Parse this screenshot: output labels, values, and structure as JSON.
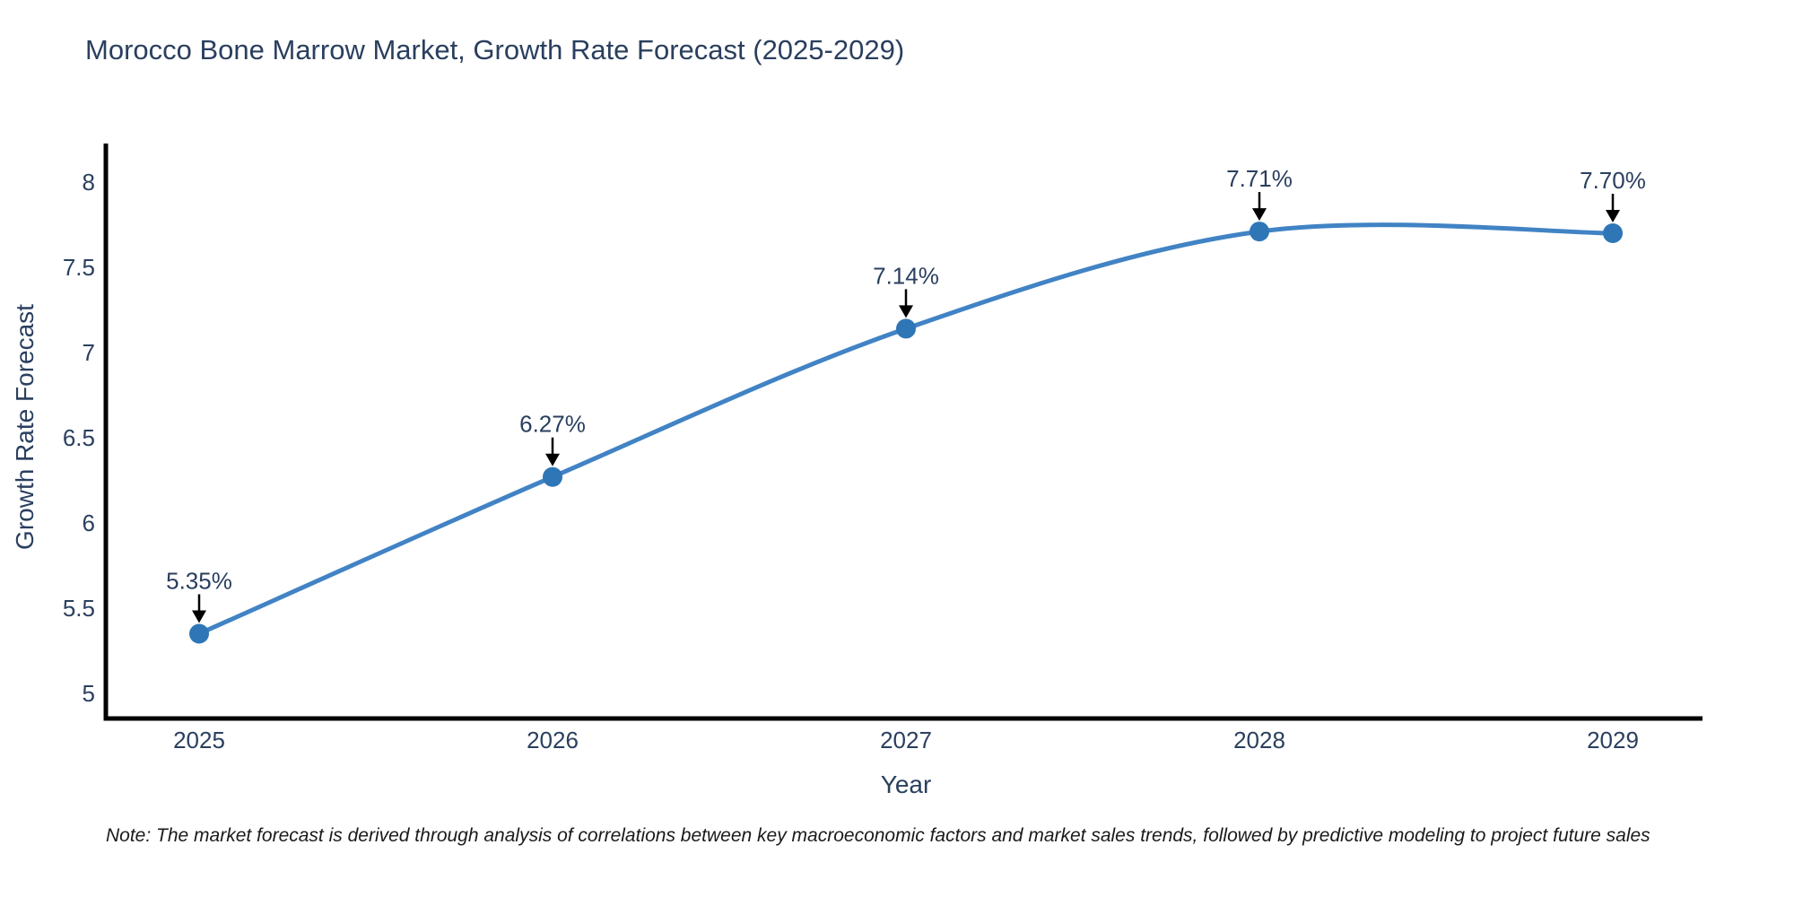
{
  "note": "Note: The market forecast is derived through analysis of correlations between key macroeconomic factors and market sales trends, followed by predictive modeling to project future sales",
  "chart_data": {
    "type": "line",
    "title": "Morocco Bone Marrow Market, Growth Rate Forecast (2025-2029)",
    "xlabel": "Year",
    "ylabel": "Growth Rate Forecast",
    "x": [
      2025,
      2026,
      2027,
      2028,
      2029
    ],
    "values": [
      5.35,
      6.27,
      7.14,
      7.71,
      7.7
    ],
    "point_labels": [
      "5.35%",
      "6.27%",
      "7.14%",
      "7.71%",
      "7.70%"
    ],
    "x_tick_labels": [
      "2025",
      "2026",
      "2027",
      "2028",
      "2029"
    ],
    "y_tick_values": [
      5,
      5.5,
      6,
      6.5,
      7,
      7.5,
      8
    ],
    "y_tick_labels": [
      "5",
      "5.5",
      "6",
      "6.5",
      "7",
      "7.5",
      "8"
    ],
    "xlim": [
      2024.74,
      2029.25
    ],
    "ylim": [
      4.85,
      8.23
    ],
    "grid": false,
    "legend": false,
    "line_shape": "spline",
    "annotation_style": "arrow-down-to-point",
    "colors": {
      "line": "#4183c4",
      "marker": "#2f76b6",
      "axis": "#000000",
      "text": "#2a3f5f",
      "arrow": "#000000",
      "note_text": "#1a1a1a",
      "background": "#ffffff"
    }
  }
}
